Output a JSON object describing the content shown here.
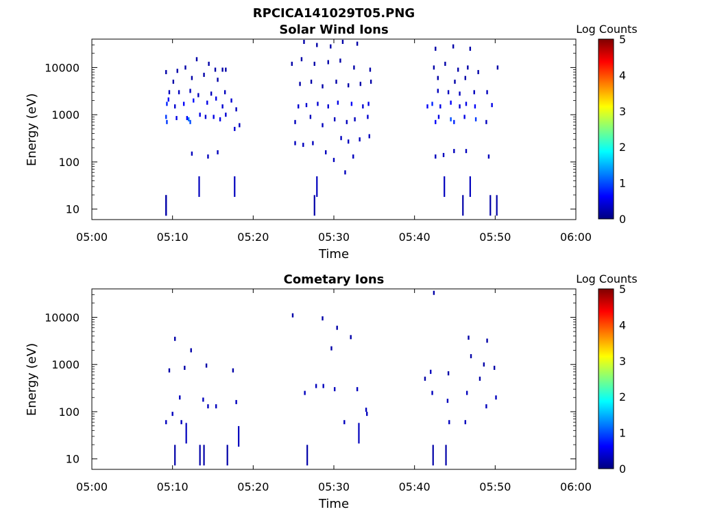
{
  "figure_title": "RPCICA141029T05.PNG",
  "chart_data": [
    {
      "type": "heatmap",
      "title": "Solar Wind Ions",
      "xlabel": "Time",
      "ylabel": "Energy (eV)",
      "y_scale": "log",
      "ylim": [
        6,
        40000
      ],
      "yticks": [
        "10",
        "100",
        "1000",
        "10000"
      ],
      "xlim": [
        "05:00",
        "06:00"
      ],
      "xticks": [
        "05:00",
        "05:10",
        "05:20",
        "05:30",
        "05:40",
        "05:50",
        "06:00"
      ],
      "colorbar": {
        "label": "Log Counts",
        "range": [
          0,
          5
        ],
        "ticks": [
          "0",
          "1",
          "2",
          "3",
          "4",
          "5"
        ]
      },
      "points": [
        [
          9.2,
          12,
          0.2
        ],
        [
          9.2,
          12,
          0.2
        ],
        [
          13.3,
          30,
          0.3
        ],
        [
          17.7,
          30,
          0.3
        ],
        [
          27.6,
          12,
          0.2
        ],
        [
          27.9,
          30,
          0.3
        ],
        [
          46.0,
          12,
          0.2
        ],
        [
          49.4,
          12,
          0.2
        ],
        [
          50.2,
          12,
          0.2
        ],
        [
          43.7,
          30,
          0.3
        ],
        [
          46.9,
          30,
          0.3
        ],
        [
          12.4,
          150,
          0.3
        ],
        [
          14.4,
          130,
          0.3
        ],
        [
          15.6,
          160,
          0.3
        ],
        [
          31.4,
          60,
          0.3
        ],
        [
          30.0,
          110,
          0.3
        ],
        [
          32.4,
          130,
          0.3
        ],
        [
          42.6,
          130,
          0.3
        ],
        [
          43.6,
          140,
          0.3
        ],
        [
          44.9,
          170,
          0.3
        ],
        [
          46.4,
          170,
          0.3
        ],
        [
          49.2,
          130,
          0.3
        ],
        [
          9.2,
          900,
          0.9
        ],
        [
          9.3,
          700,
          0.9
        ],
        [
          10.5,
          850,
          0.5
        ],
        [
          11.8,
          850,
          0.6
        ],
        [
          12.0,
          800,
          1.2
        ],
        [
          12.2,
          700,
          1.0
        ],
        [
          13.4,
          1000,
          0.5
        ],
        [
          14.1,
          900,
          0.4
        ],
        [
          15.1,
          900,
          0.5
        ],
        [
          15.9,
          800,
          0.5
        ],
        [
          16.6,
          1000,
          0.4
        ],
        [
          17.7,
          500,
          0.4
        ],
        [
          9.3,
          1700,
          0.8
        ],
        [
          9.5,
          2100,
          0.6
        ],
        [
          10.3,
          1500,
          0.4
        ],
        [
          11.4,
          1700,
          0.6
        ],
        [
          12.6,
          2000,
          0.7
        ],
        [
          14.3,
          1800,
          0.5
        ],
        [
          15.4,
          2200,
          0.5
        ],
        [
          16.2,
          1500,
          0.4
        ],
        [
          17.3,
          2000,
          0.4
        ],
        [
          17.9,
          1300,
          0.3
        ],
        [
          18.3,
          600,
          0.3
        ],
        [
          9.6,
          3000,
          0.3
        ],
        [
          10.8,
          3000,
          0.3
        ],
        [
          12.2,
          3200,
          0.3
        ],
        [
          13.2,
          2600,
          0.3
        ],
        [
          14.8,
          2800,
          0.3
        ],
        [
          16.5,
          3000,
          0.3
        ],
        [
          9.2,
          8000,
          0.2
        ],
        [
          10.6,
          8500,
          0.2
        ],
        [
          11.6,
          10000,
          0.2
        ],
        [
          13.0,
          15000,
          0.2
        ],
        [
          14.5,
          12000,
          0.2
        ],
        [
          15.3,
          9000,
          0.2
        ],
        [
          16.2,
          9000,
          0.2
        ],
        [
          16.6,
          9000,
          0.2
        ],
        [
          10.1,
          5000,
          0.2
        ],
        [
          12.4,
          6000,
          0.2
        ],
        [
          13.9,
          7000,
          0.2
        ],
        [
          15.6,
          5500,
          0.2
        ],
        [
          25.2,
          250,
          0.3
        ],
        [
          26.2,
          230,
          0.3
        ],
        [
          27.4,
          250,
          0.3
        ],
        [
          29.0,
          160,
          0.3
        ],
        [
          30.9,
          320,
          0.3
        ],
        [
          31.8,
          270,
          0.3
        ],
        [
          33.2,
          300,
          0.3
        ],
        [
          34.4,
          350,
          0.3
        ],
        [
          25.2,
          700,
          0.3
        ],
        [
          27.1,
          900,
          0.3
        ],
        [
          28.6,
          600,
          0.3
        ],
        [
          30.1,
          800,
          0.3
        ],
        [
          31.6,
          700,
          0.3
        ],
        [
          32.6,
          800,
          0.3
        ],
        [
          34.2,
          900,
          0.4
        ],
        [
          25.6,
          1500,
          0.4
        ],
        [
          26.6,
          1600,
          0.4
        ],
        [
          28.0,
          1700,
          0.4
        ],
        [
          29.3,
          1500,
          0.4
        ],
        [
          30.5,
          1800,
          0.5
        ],
        [
          32.2,
          1700,
          0.6
        ],
        [
          33.6,
          1500,
          0.4
        ],
        [
          34.3,
          1700,
          0.5
        ],
        [
          25.8,
          4500,
          0.2
        ],
        [
          27.2,
          5000,
          0.2
        ],
        [
          28.6,
          4000,
          0.2
        ],
        [
          30.3,
          5000,
          0.2
        ],
        [
          31.8,
          4200,
          0.2
        ],
        [
          33.3,
          4500,
          0.2
        ],
        [
          34.6,
          5000,
          0.2
        ],
        [
          24.8,
          12000,
          0.2
        ],
        [
          26.0,
          15000,
          0.2
        ],
        [
          27.6,
          12000,
          0.2
        ],
        [
          29.3,
          13000,
          0.2
        ],
        [
          30.8,
          14000,
          0.2
        ],
        [
          32.5,
          10000,
          0.2
        ],
        [
          34.5,
          9000,
          0.2
        ],
        [
          26.3,
          35000,
          0.2
        ],
        [
          27.9,
          30000,
          0.2
        ],
        [
          29.6,
          28000,
          0.2
        ],
        [
          31.1,
          35000,
          0.2
        ],
        [
          32.9,
          32000,
          0.2
        ],
        [
          42.6,
          700,
          0.6
        ],
        [
          43.0,
          900,
          0.5
        ],
        [
          44.5,
          800,
          1.0
        ],
        [
          44.9,
          700,
          0.8
        ],
        [
          46.2,
          900,
          0.5
        ],
        [
          47.6,
          800,
          0.9
        ],
        [
          48.9,
          700,
          0.3
        ],
        [
          41.6,
          1500,
          0.6
        ],
        [
          42.2,
          1700,
          0.8
        ],
        [
          43.2,
          1500,
          0.5
        ],
        [
          44.5,
          1800,
          0.6
        ],
        [
          45.6,
          1500,
          0.4
        ],
        [
          46.4,
          1700,
          0.5
        ],
        [
          47.5,
          1500,
          0.6
        ],
        [
          49.6,
          1600,
          0.5
        ],
        [
          42.9,
          3200,
          0.3
        ],
        [
          44.2,
          3000,
          0.3
        ],
        [
          45.6,
          2800,
          0.3
        ],
        [
          47.4,
          3000,
          0.3
        ],
        [
          49.0,
          3000,
          0.3
        ],
        [
          42.4,
          10000,
          0.2
        ],
        [
          43.8,
          12000,
          0.2
        ],
        [
          45.4,
          9000,
          0.2
        ],
        [
          46.6,
          10000,
          0.2
        ],
        [
          47.9,
          8000,
          0.2
        ],
        [
          50.3,
          10000,
          0.2
        ],
        [
          42.6,
          25000,
          0.2
        ],
        [
          44.8,
          28000,
          0.2
        ],
        [
          46.9,
          25000,
          0.2
        ],
        [
          42.9,
          6000,
          0.2
        ],
        [
          45.0,
          5000,
          0.2
        ],
        [
          46.3,
          6000,
          0.2
        ]
      ]
    },
    {
      "type": "heatmap",
      "title": "Cometary Ions",
      "xlabel": "Time",
      "ylabel": "Energy (eV)",
      "y_scale": "log",
      "ylim": [
        6,
        40000
      ],
      "yticks": [
        "10",
        "100",
        "1000",
        "10000"
      ],
      "xlim": [
        "05:00",
        "06:00"
      ],
      "xticks": [
        "05:00",
        "05:10",
        "05:20",
        "05:30",
        "05:40",
        "05:50",
        "06:00"
      ],
      "colorbar": {
        "label": "Log Counts",
        "range": [
          0,
          5
        ],
        "ticks": [
          "0",
          "1",
          "2",
          "3",
          "4",
          "5"
        ]
      },
      "points": [
        [
          10.3,
          12,
          0.2
        ],
        [
          13.4,
          12,
          0.2
        ],
        [
          13.9,
          12,
          0.2
        ],
        [
          16.8,
          12,
          0.2
        ],
        [
          26.7,
          12,
          0.2
        ],
        [
          42.3,
          12,
          0.2
        ],
        [
          43.9,
          12,
          0.2
        ],
        [
          11.7,
          35,
          0.3
        ],
        [
          18.2,
          30,
          0.3
        ],
        [
          33.1,
          35,
          0.3
        ],
        [
          9.2,
          60,
          0.3
        ],
        [
          10.0,
          90,
          0.3
        ],
        [
          11.1,
          60,
          0.3
        ],
        [
          31.3,
          60,
          0.3
        ],
        [
          34.1,
          90,
          0.3
        ],
        [
          44.3,
          60,
          0.3
        ],
        [
          46.3,
          60,
          0.3
        ],
        [
          10.9,
          200,
          0.3
        ],
        [
          13.8,
          180,
          0.3
        ],
        [
          14.4,
          130,
          0.3
        ],
        [
          15.4,
          130,
          0.3
        ],
        [
          17.9,
          160,
          0.3
        ],
        [
          34.0,
          110,
          0.3
        ],
        [
          26.4,
          250,
          0.3
        ],
        [
          27.8,
          350,
          0.3
        ],
        [
          28.7,
          350,
          0.3
        ],
        [
          30.1,
          300,
          0.3
        ],
        [
          32.9,
          300,
          0.3
        ],
        [
          41.3,
          500,
          0.2
        ],
        [
          42.0,
          700,
          0.3
        ],
        [
          44.2,
          650,
          0.2
        ],
        [
          48.1,
          500,
          0.2
        ],
        [
          42.2,
          250,
          0.3
        ],
        [
          44.1,
          170,
          0.3
        ],
        [
          46.5,
          250,
          0.3
        ],
        [
          48.9,
          130,
          0.3
        ],
        [
          50.1,
          200,
          0.3
        ],
        [
          9.6,
          750,
          0.2
        ],
        [
          11.5,
          850,
          0.2
        ],
        [
          14.2,
          950,
          0.2
        ],
        [
          17.5,
          750,
          0.2
        ],
        [
          48.6,
          1000,
          0.2
        ],
        [
          49.9,
          850,
          0.2
        ],
        [
          10.3,
          3500,
          0.2
        ],
        [
          12.3,
          2000,
          0.2
        ],
        [
          29.7,
          2200,
          0.2
        ],
        [
          32.1,
          3800,
          0.2
        ],
        [
          46.7,
          3700,
          0.2
        ],
        [
          47.0,
          1500,
          0.2
        ],
        [
          49.0,
          3200,
          0.2
        ],
        [
          24.9,
          11000,
          0.2
        ],
        [
          28.6,
          9500,
          0.2
        ],
        [
          30.4,
          6000,
          0.2
        ],
        [
          42.4,
          33000,
          0.2
        ]
      ]
    }
  ]
}
